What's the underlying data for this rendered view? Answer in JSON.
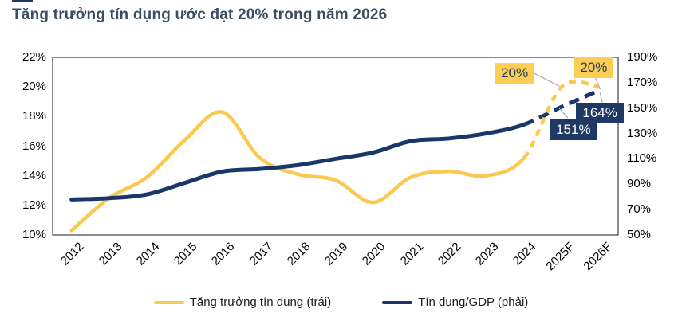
{
  "page": {
    "title": "Tăng trưởng tín dụng ước đạt 20% trong năm 2026"
  },
  "colors": {
    "credit_growth_line": "#FAC94F",
    "credit_to_gdp_line": "#1B3668",
    "label_box_yellow": "#FCCE55",
    "label_box_navy": "#1F3864",
    "title_text": "#3A4E63",
    "plot_border": "#404040",
    "leader_line": "#ABABAB"
  },
  "chart_data": {
    "type": "line",
    "title": "Tăng trưởng tín dụng ước đạt 20% trong năm 2026",
    "categories": [
      "2012",
      "2013",
      "2014",
      "2015",
      "2016",
      "2017",
      "2018",
      "2019",
      "2020",
      "2021",
      "2022",
      "2023",
      "2024",
      "2025F",
      "2026F"
    ],
    "series": [
      {
        "name": "Tăng trưởng tín dụng (trái)",
        "axis": "left",
        "color": "#FAC94F",
        "style_after_2024": "dashed-forecast",
        "forecast_from_index": 12,
        "values": [
          10.3,
          12.5,
          13.9,
          16.4,
          18.3,
          15.2,
          14.1,
          13.7,
          12.2,
          13.9,
          14.3,
          14.0,
          15.2,
          20,
          20
        ]
      },
      {
        "name": "Tín dụng/GDP (phải)",
        "axis": "right",
        "color": "#1B3668",
        "style_after_2024": "dashed-forecast",
        "forecast_from_index": 12,
        "values": [
          78,
          79,
          82,
          91,
          100,
          102,
          105,
          110,
          115,
          124,
          126,
          130,
          137,
          151,
          164
        ]
      }
    ],
    "left_axis": {
      "min": 10,
      "max": 22,
      "ticks": [
        "22%",
        "20%",
        "18%",
        "16%",
        "14%",
        "12%",
        "10%"
      ]
    },
    "right_axis": {
      "min": 50,
      "max": 190,
      "ticks": [
        "190%",
        "170%",
        "150%",
        "130%",
        "110%",
        "90%",
        "70%",
        "50%"
      ]
    },
    "grid": "off",
    "legend_position": "bottom-center",
    "annotations": [
      {
        "label": "20%",
        "series": 0,
        "index": 13,
        "style": "yellow"
      },
      {
        "label": "20%",
        "series": 0,
        "index": 14,
        "style": "yellow"
      },
      {
        "label": "164%",
        "series": 1,
        "index": 14,
        "style": "navy"
      },
      {
        "label": "151%",
        "series": 1,
        "index": 13,
        "style": "navy"
      }
    ],
    "legend": [
      {
        "label": "Tăng trưởng tín dụng (trái)"
      },
      {
        "label": "Tín dụng/GDP (phải)"
      }
    ]
  }
}
